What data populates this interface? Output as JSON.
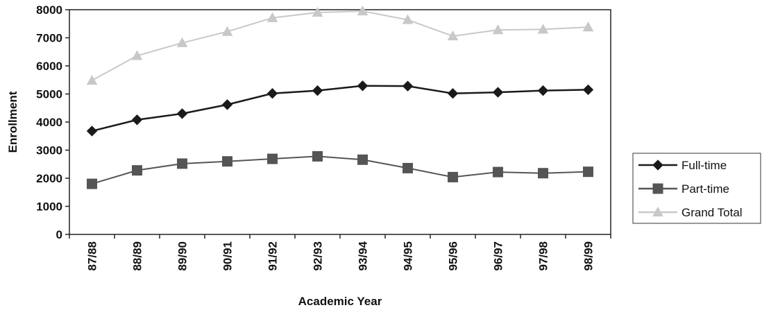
{
  "chart_data": {
    "type": "line",
    "categories": [
      "87/88",
      "88/89",
      "89/90",
      "90/91",
      "91/92",
      "92/93",
      "93/94",
      "94/95",
      "95/96",
      "96/97",
      "97/98",
      "98/99"
    ],
    "series": [
      {
        "name": "Full-time",
        "values": [
          3680,
          4080,
          4300,
          4620,
          5020,
          5120,
          5290,
          5280,
          5020,
          5060,
          5120,
          5150
        ],
        "color": "#1a1a1a",
        "marker": "diamond"
      },
      {
        "name": "Part-time",
        "values": [
          1800,
          2280,
          2520,
          2600,
          2690,
          2780,
          2660,
          2360,
          2040,
          2220,
          2180,
          2230
        ],
        "color": "#555555",
        "marker": "square"
      },
      {
        "name": "Grand Total",
        "values": [
          5480,
          6360,
          6820,
          7220,
          7710,
          7900,
          7950,
          7640,
          7060,
          7280,
          7300,
          7380
        ],
        "color": "#c8c8c8",
        "marker": "triangle"
      }
    ],
    "xlabel": "Academic Year",
    "ylabel": "Enrollment",
    "ylim": [
      0,
      8000
    ],
    "yticks": [
      "0",
      "1000",
      "2000",
      "3000",
      "4000",
      "5000",
      "6000",
      "7000",
      "8000"
    ],
    "grid": false,
    "legend_position": "right"
  }
}
